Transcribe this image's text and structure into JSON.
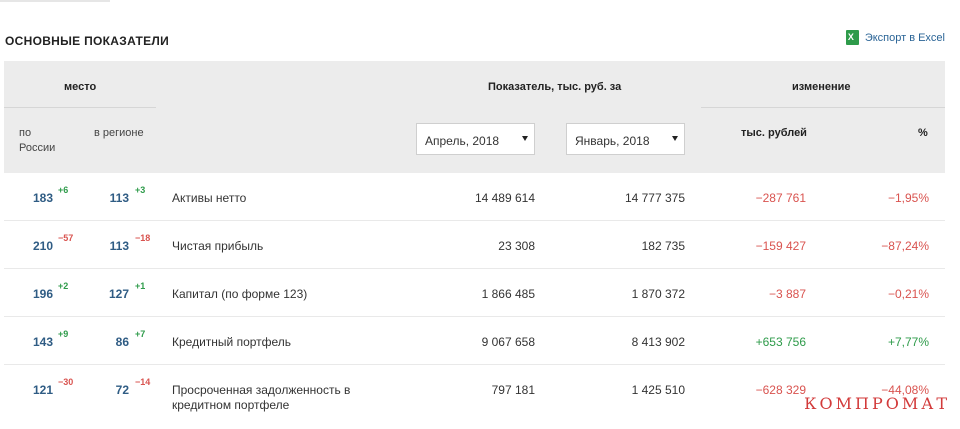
{
  "header": {
    "title": "ОСНОВНЫЕ ПОКАЗАТЕЛИ",
    "export_label": "Экспорт в Excel"
  },
  "table_head": {
    "place": "место",
    "place_russia": "по России",
    "place_region": "в регионе",
    "indicator": "Показатель, тыс. руб. за",
    "change": "изменение",
    "change_rub": "тыс. рублей",
    "change_pct": "%",
    "period1": "Апрель, 2018",
    "period2": "Январь, 2018"
  },
  "rows": [
    {
      "rank_ru": "183",
      "delta_ru": "+6",
      "rank_reg": "113",
      "delta_reg": "+3",
      "name": "Активы нетто",
      "v1": "14 489 614",
      "v2": "14 777 375",
      "chg": "−287 761",
      "pct": "−1,95%"
    },
    {
      "rank_ru": "210",
      "delta_ru": "−57",
      "rank_reg": "113",
      "delta_reg": "−18",
      "name": "Чистая прибыль",
      "v1": "23 308",
      "v2": "182 735",
      "chg": "−159 427",
      "pct": "−87,24%"
    },
    {
      "rank_ru": "196",
      "delta_ru": "+2",
      "rank_reg": "127",
      "delta_reg": "+1",
      "name": "Капитал (по форме 123)",
      "v1": "1 866 485",
      "v2": "1 870 372",
      "chg": "−3 887",
      "pct": "−0,21%"
    },
    {
      "rank_ru": "143",
      "delta_ru": "+9",
      "rank_reg": "86",
      "delta_reg": "+7",
      "name": "Кредитный портфель",
      "v1": "9 067 658",
      "v2": "8 413 902",
      "chg": "+653 756",
      "pct": "+7,77%"
    },
    {
      "rank_ru": "121",
      "delta_ru": "−30",
      "rank_reg": "72",
      "delta_reg": "−14",
      "name": "Просроченная задолженность в кредитном портфеле",
      "v1": "797 181",
      "v2": "1 425 510",
      "chg": "−628 329",
      "pct": "−44,08%"
    }
  ],
  "watermark": "КОМПРОМАТ",
  "colors": {
    "positive": "#2e9b4a",
    "negative": "#d9534f",
    "rank": "#2f5c84",
    "header_bg": "#ececec"
  }
}
